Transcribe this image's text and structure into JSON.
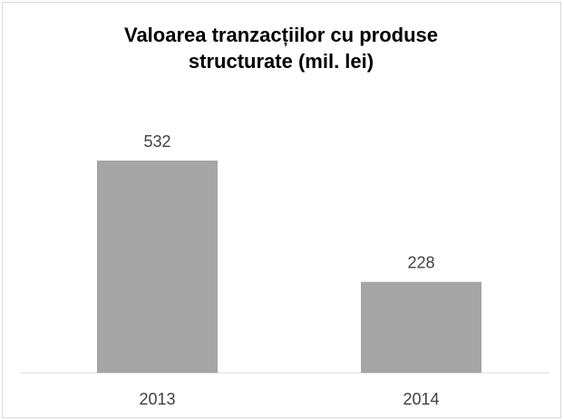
{
  "chart_data": {
    "type": "bar",
    "title": "Valoarea tranzacțiilor cu produse structurate (mil. lei)",
    "categories": [
      "2013",
      "2014"
    ],
    "values": [
      532,
      228
    ],
    "color": "#a5a5a5"
  }
}
